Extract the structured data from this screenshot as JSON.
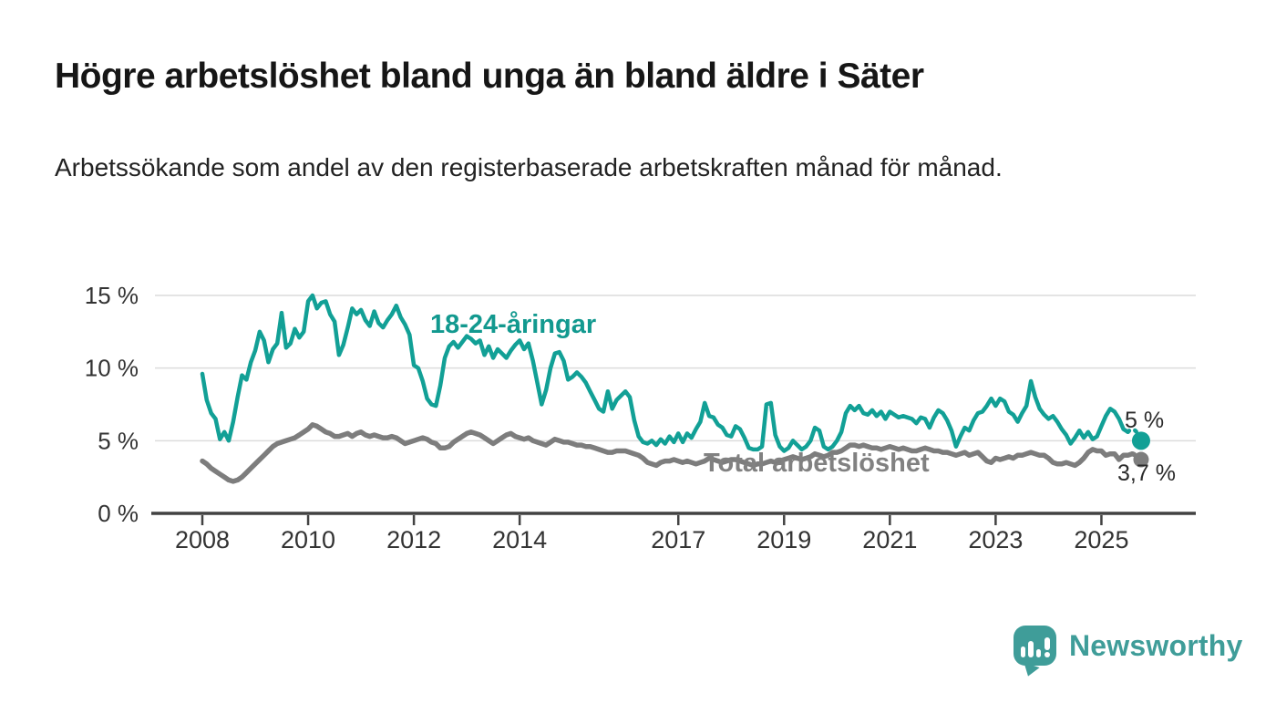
{
  "page": {
    "title": "Högre arbetslöshet bland unga än bland äldre i Säter",
    "subtitle": "Arbetssökande som andel av den registerbaserade arbetskraften månad för månad."
  },
  "chart_data": {
    "type": "line",
    "title": "Högre arbetslöshet bland unga än bland äldre i Säter",
    "subtitle": "Arbetssökande som andel av den registerbaserade arbetskraften månad för månad.",
    "unit": "%",
    "frequency": "monthly",
    "x_start": "2008-01",
    "x_end": "2025-10",
    "ylim": [
      0,
      15.5
    ],
    "grid": "horizontal",
    "legend_position": "inline-labels",
    "y_axis": [
      {
        "label": "0 %",
        "value": 0
      },
      {
        "label": "5 %",
        "value": 5
      },
      {
        "label": "10 %",
        "value": 10
      },
      {
        "label": "15 %",
        "value": 15
      }
    ],
    "x_axis": [
      {
        "label": "2008",
        "year": 2008
      },
      {
        "label": "2010",
        "year": 2010
      },
      {
        "label": "2012",
        "year": 2012
      },
      {
        "label": "2014",
        "year": 2014
      },
      {
        "label": "2017",
        "year": 2017
      },
      {
        "label": "2019",
        "year": 2019
      },
      {
        "label": "2021",
        "year": 2021
      },
      {
        "label": "2023",
        "year": 2023
      },
      {
        "label": "2025",
        "year": 2025
      }
    ],
    "series": [
      {
        "name": "18-24-åringar",
        "color": "#12a096",
        "end_label": "5 %",
        "end_value": 5.0,
        "end_dot": true,
        "dashed_tail_points": 3,
        "values": [
          9.6,
          7.8,
          6.9,
          6.5,
          5.1,
          5.6,
          5.0,
          6.3,
          8.0,
          9.5,
          9.2,
          10.4,
          11.2,
          12.5,
          11.9,
          10.4,
          11.3,
          11.7,
          13.8,
          11.4,
          11.7,
          12.7,
          12.1,
          12.5,
          14.6,
          15.0,
          14.1,
          14.5,
          14.6,
          13.7,
          13.2,
          10.9,
          11.6,
          12.8,
          14.1,
          13.7,
          14.0,
          13.3,
          12.9,
          13.9,
          13.1,
          12.8,
          13.3,
          13.7,
          14.3,
          13.5,
          13.0,
          12.3,
          10.2,
          10.0,
          9.1,
          7.9,
          7.5,
          7.4,
          8.8,
          10.7,
          11.5,
          11.8,
          11.4,
          11.8,
          12.2,
          12.0,
          11.7,
          11.9,
          10.9,
          11.5,
          10.7,
          11.3,
          11.0,
          10.7,
          11.2,
          11.6,
          11.9,
          11.3,
          11.7,
          10.5,
          9.0,
          7.5,
          8.5,
          10.0,
          11.0,
          11.1,
          10.5,
          9.2,
          9.4,
          9.7,
          9.4,
          9.0,
          8.4,
          7.8,
          7.2,
          7.0,
          8.4,
          7.2,
          7.8,
          8.1,
          8.4,
          8.0,
          6.4,
          5.3,
          4.9,
          4.8,
          5.0,
          4.7,
          5.1,
          4.8,
          5.3,
          4.9,
          5.5,
          4.9,
          5.5,
          5.2,
          5.8,
          6.3,
          7.6,
          6.7,
          6.6,
          6.1,
          5.9,
          5.4,
          5.3,
          6.0,
          5.8,
          5.2,
          4.5,
          4.4,
          4.4,
          4.6,
          7.5,
          7.6,
          5.4,
          4.6,
          4.3,
          4.5,
          5.0,
          4.7,
          4.4,
          4.6,
          5.0,
          5.9,
          5.7,
          4.6,
          4.4,
          4.6,
          5.0,
          5.6,
          6.9,
          7.4,
          7.1,
          7.4,
          6.9,
          6.8,
          7.1,
          6.7,
          7.0,
          6.5,
          7.0,
          6.8,
          6.6,
          6.7,
          6.6,
          6.5,
          6.2,
          6.6,
          6.5,
          5.9,
          6.6,
          7.1,
          6.9,
          6.4,
          5.7,
          4.6,
          5.3,
          5.9,
          5.7,
          6.4,
          6.9,
          7.0,
          7.4,
          7.9,
          7.4,
          7.9,
          7.7,
          7.0,
          6.8,
          6.3,
          6.9,
          7.4,
          9.1,
          8.0,
          7.2,
          6.8,
          6.5,
          6.7,
          6.3,
          5.8,
          5.4,
          4.8,
          5.2,
          5.7,
          5.2,
          5.6,
          5.1,
          5.3,
          6.0,
          6.7,
          7.2,
          7.0,
          6.5,
          5.8,
          5.6,
          5.9,
          5.6,
          5.0
        ]
      },
      {
        "name": "Total arbetslöshet",
        "color": "#7d7d7d",
        "end_label": "3,7 %",
        "end_value": 3.7,
        "end_dot": true,
        "dashed_tail_points": 2,
        "values": [
          3.6,
          3.4,
          3.1,
          2.9,
          2.7,
          2.5,
          2.3,
          2.2,
          2.3,
          2.5,
          2.8,
          3.1,
          3.4,
          3.7,
          4.0,
          4.3,
          4.6,
          4.8,
          4.9,
          5.0,
          5.1,
          5.2,
          5.4,
          5.6,
          5.8,
          6.1,
          6.0,
          5.8,
          5.6,
          5.5,
          5.3,
          5.3,
          5.4,
          5.5,
          5.3,
          5.5,
          5.6,
          5.4,
          5.3,
          5.4,
          5.3,
          5.2,
          5.2,
          5.3,
          5.2,
          5.0,
          4.8,
          4.9,
          5.0,
          5.1,
          5.2,
          5.1,
          4.9,
          4.8,
          4.5,
          4.5,
          4.6,
          4.9,
          5.1,
          5.3,
          5.5,
          5.6,
          5.5,
          5.4,
          5.2,
          5.0,
          4.8,
          5.0,
          5.2,
          5.4,
          5.5,
          5.3,
          5.2,
          5.1,
          5.2,
          5.0,
          4.9,
          4.8,
          4.7,
          4.9,
          5.1,
          5.0,
          4.9,
          4.9,
          4.8,
          4.7,
          4.7,
          4.6,
          4.6,
          4.5,
          4.4,
          4.3,
          4.2,
          4.2,
          4.3,
          4.3,
          4.3,
          4.2,
          4.1,
          4.0,
          3.8,
          3.5,
          3.4,
          3.3,
          3.5,
          3.6,
          3.6,
          3.7,
          3.6,
          3.5,
          3.6,
          3.5,
          3.4,
          3.5,
          3.6,
          3.8,
          3.7,
          3.6,
          3.5,
          3.6,
          3.7,
          3.7,
          3.6,
          3.5,
          3.4,
          3.3,
          3.4,
          3.4,
          3.5,
          3.6,
          3.5,
          3.6,
          3.7,
          3.8,
          3.9,
          3.8,
          3.7,
          3.8,
          3.9,
          4.1,
          4.0,
          3.9,
          4.0,
          4.2,
          4.2,
          4.3,
          4.5,
          4.7,
          4.7,
          4.6,
          4.7,
          4.6,
          4.5,
          4.5,
          4.4,
          4.5,
          4.6,
          4.5,
          4.4,
          4.5,
          4.4,
          4.3,
          4.3,
          4.4,
          4.5,
          4.4,
          4.3,
          4.3,
          4.2,
          4.2,
          4.1,
          4.0,
          4.1,
          4.2,
          4.0,
          4.1,
          4.2,
          3.9,
          3.6,
          3.5,
          3.8,
          3.7,
          3.8,
          3.9,
          3.8,
          4.0,
          4.0,
          4.1,
          4.2,
          4.1,
          4.0,
          4.0,
          3.8,
          3.5,
          3.4,
          3.4,
          3.5,
          3.4,
          3.3,
          3.5,
          3.8,
          4.2,
          4.4,
          4.3,
          4.3,
          4.0,
          4.1,
          4.1,
          3.7,
          4.0,
          4.0,
          4.1,
          4.0,
          3.7
        ]
      }
    ]
  },
  "branding": {
    "logo_text": "Newsworthy",
    "logo_color": "#3f9d99",
    "logo_icon": "bar-chart-speech-bubble"
  }
}
